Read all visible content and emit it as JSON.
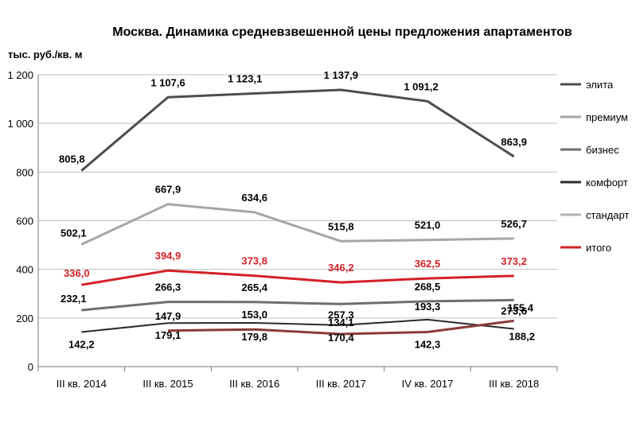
{
  "chart_data": {
    "type": "line",
    "title": "Москва. Динамика средневзвешенной цены предложения апартаментов",
    "ylabel": "тыс. руб./кв.  м",
    "ylim": [
      0,
      1200
    ],
    "yticks": [
      "0",
      "200",
      "400",
      "600",
      "800",
      "1 000",
      "1 200"
    ],
    "grid": true,
    "legend_position": "right",
    "categories": [
      "III кв. 2014",
      "III кв. 2015",
      "III кв. 2016",
      "III кв. 2017",
      "IV кв. 2017",
      "III кв. 2018"
    ],
    "series": [
      {
        "name": "элита",
        "color": "#4d4d4d",
        "values": [
          805.8,
          1107.6,
          1123.1,
          1137.9,
          1091.2,
          863.9
        ],
        "labels": [
          "805,8",
          "1 107,6",
          "1 123,1",
          "1 137,9",
          "1 091,2",
          "863,9"
        ]
      },
      {
        "name": "премиум",
        "color": "#a6a6a6",
        "values": [
          502.1,
          667.9,
          634.6,
          515.8,
          521.0,
          526.7
        ],
        "labels": [
          "502,1",
          "667,9",
          "634,6",
          "515,8",
          "521,0",
          "526,7"
        ]
      },
      {
        "name": "бизнес",
        "color": "#6f6f6f",
        "values": [
          232.1,
          266.3,
          265.4,
          257.3,
          268.5,
          273.6
        ],
        "labels": [
          "232,1",
          "266,3",
          "265,4",
          "257,3",
          "268,5",
          "273,6"
        ]
      },
      {
        "name": "комфорт",
        "color": "#2b2b2b",
        "values": [
          142.2,
          179.1,
          179.8,
          170.4,
          193.3,
          155.4
        ],
        "labels": [
          "142,2",
          "179,1",
          "179,8",
          "170,4",
          "193,3",
          "155,4"
        ]
      },
      {
        "name": "стандарт",
        "color": "#8b3a3a",
        "values": [
          null,
          147.9,
          153.0,
          134.1,
          142.3,
          188.2
        ],
        "labels": [
          "",
          "147,9",
          "153,0",
          "134,1",
          "142,3",
          "188,2"
        ]
      },
      {
        "name": "итого",
        "color": "#d42027",
        "values": [
          336.0,
          394.9,
          373.8,
          346.2,
          362.5,
          373.2
        ],
        "labels": [
          "336,0",
          "394,9",
          "373,8",
          "346,2",
          "362,5",
          "373,2"
        ]
      }
    ],
    "legend": [
      {
        "name": "элита",
        "color": "#4d4d4d"
      },
      {
        "name": "премиум",
        "color": "#a6a6a6"
      },
      {
        "name": "бизнес",
        "color": "#6f6f6f"
      },
      {
        "name": "комфорт",
        "color": "#2b2b2b"
      },
      {
        "name": "стандарт",
        "color": "#b3b3b3"
      },
      {
        "name": "итого",
        "color": "#d42027"
      }
    ]
  }
}
